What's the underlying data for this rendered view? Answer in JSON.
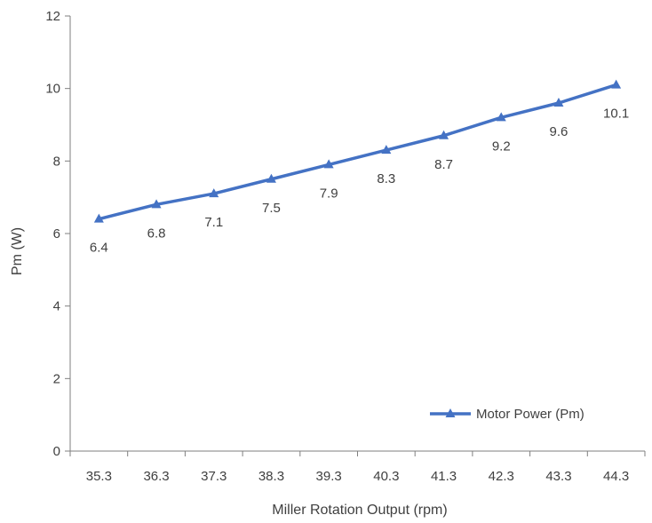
{
  "chart_data": {
    "type": "line",
    "title": "",
    "xlabel": "Miller Rotation Output (rpm)",
    "ylabel": "Pm (W)",
    "categories": [
      "35.3",
      "36.3",
      "37.3",
      "38.3",
      "39.3",
      "40.3",
      "41.3",
      "42.3",
      "43.3",
      "44.3"
    ],
    "series": [
      {
        "name": "Motor Power (Pm)",
        "values": [
          6.4,
          6.8,
          7.1,
          7.5,
          7.9,
          8.3,
          8.7,
          9.2,
          9.6,
          10.1
        ],
        "data_labels": [
          "6.4",
          "6.8",
          "7.1",
          "7.5",
          "7.9",
          "8.3",
          "8.7",
          "9.2",
          "9.6",
          "10.1"
        ],
        "color": "#4472c4",
        "marker": "triangle"
      }
    ],
    "ylim": [
      0,
      12
    ],
    "yticks": [
      "0",
      "2",
      "4",
      "6",
      "8",
      "10",
      "12"
    ],
    "grid": false,
    "legend_position": "bottom-right"
  }
}
